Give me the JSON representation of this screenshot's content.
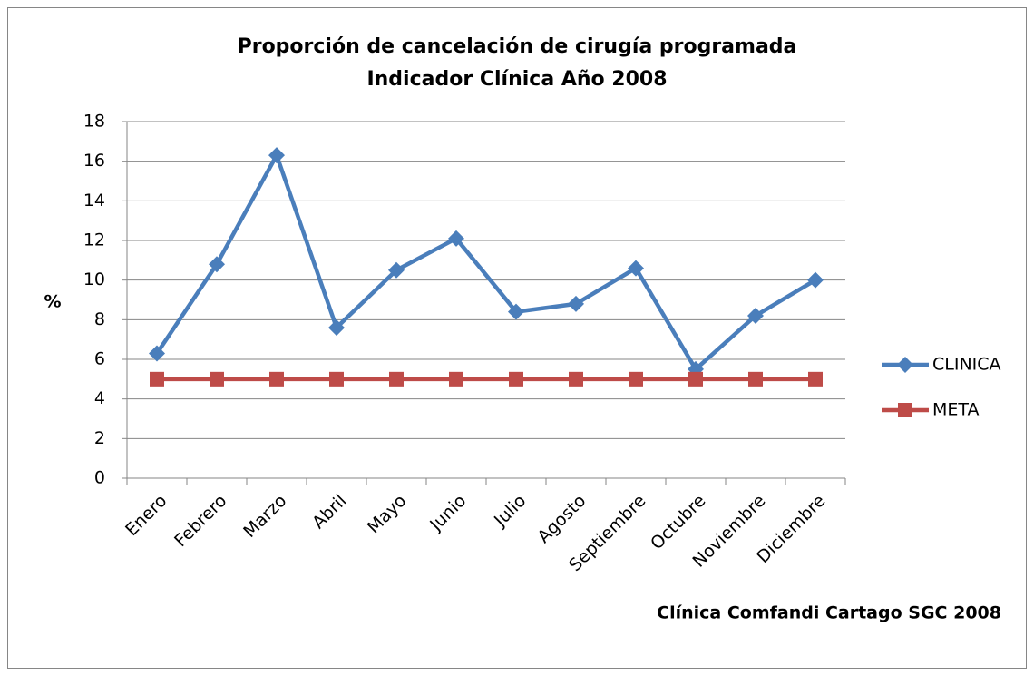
{
  "chart_data": {
    "type": "line",
    "title": [
      "Proporción de cancelación  de cirugía programada",
      "Indicador Clínica Año 2008"
    ],
    "y_label": "%",
    "annotation": "Clínica Comfandi Cartago SGC 2008",
    "categories": [
      "Enero",
      "Febrero",
      "Marzo",
      "Abril",
      "Mayo",
      "Junio",
      "Julio",
      "Agosto",
      "Septiembre",
      "Octubre",
      "Noviembre",
      "Diciembre"
    ],
    "series": [
      {
        "name": "CLINICA",
        "color": "#4a7ebb",
        "marker": "diamond",
        "values": [
          6.3,
          10.8,
          16.3,
          7.6,
          10.5,
          12.1,
          8.4,
          8.8,
          10.6,
          5.5,
          8.2,
          10.0
        ]
      },
      {
        "name": "META",
        "color": "#be4b48",
        "marker": "square",
        "values": [
          5,
          5,
          5,
          5,
          5,
          5,
          5,
          5,
          5,
          5,
          5,
          5
        ]
      }
    ],
    "ylim": [
      0,
      18
    ],
    "yticks": [
      0,
      2,
      4,
      6,
      8,
      10,
      12,
      14,
      16,
      18
    ],
    "grid": true,
    "legend": "right"
  }
}
